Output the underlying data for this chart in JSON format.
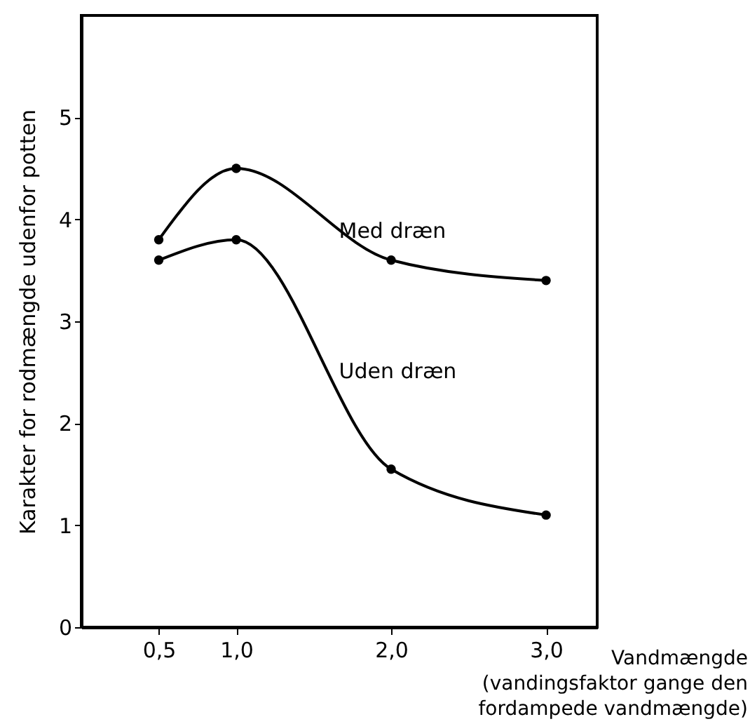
{
  "chart_data": {
    "type": "line",
    "xlabel": "Vandmængde\n(vandingsfaktor gange den\nfordampede vandmængde)",
    "ylabel": "Karakter for rodmængde udenfor potten",
    "x": [
      0.5,
      1.0,
      2.0,
      3.0
    ],
    "series": [
      {
        "name": "Med dræn",
        "color": "#000000",
        "values": [
          3.8,
          4.5,
          3.6,
          3.4
        ]
      },
      {
        "name": "Uden dræn",
        "color": "#000000",
        "values": [
          3.6,
          3.8,
          1.55,
          1.1
        ]
      }
    ],
    "xlim": [
      0,
      3.33
    ],
    "xticks": [
      {
        "value": 0.5,
        "label": "0,5"
      },
      {
        "value": 1.0,
        "label": "1,0"
      },
      {
        "value": 2.0,
        "label": "2,0"
      },
      {
        "value": 3.0,
        "label": "3,0"
      }
    ],
    "ylim": [
      0,
      6
    ],
    "yticks": [
      0,
      1,
      2,
      3,
      4,
      5
    ],
    "marker": "circle",
    "line_style": "solid",
    "grid": false
  }
}
